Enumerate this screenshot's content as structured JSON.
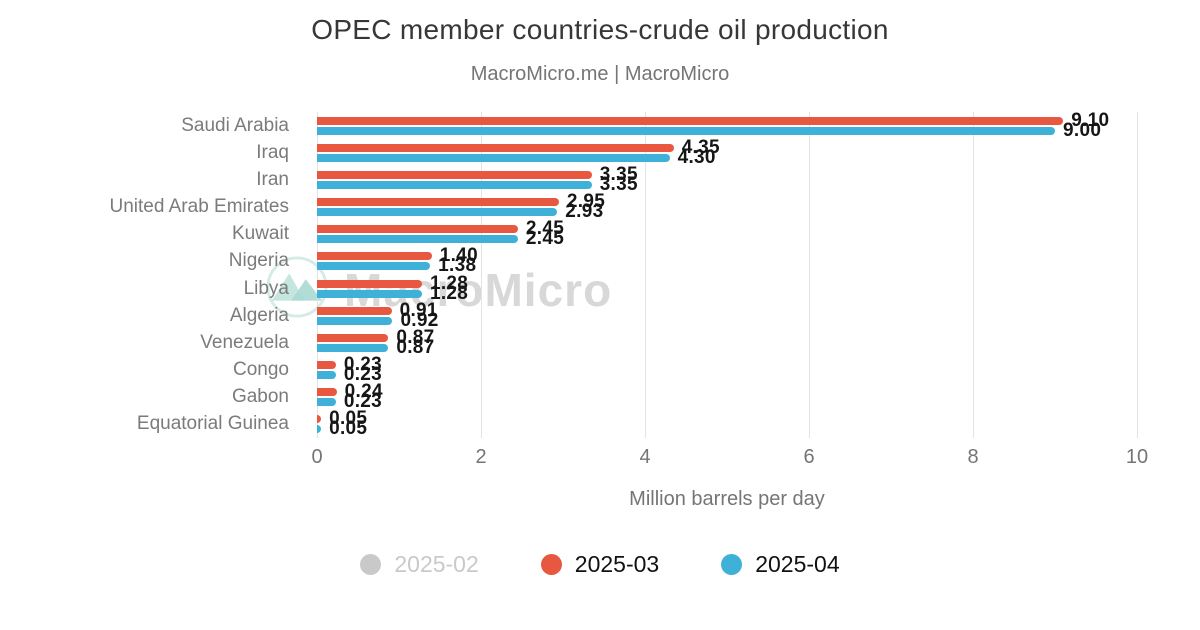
{
  "title": "OPEC member countries-crude oil production",
  "subtitle": "MacroMicro.me | MacroMicro",
  "watermark": "MacroMicro",
  "chart_data": {
    "type": "bar",
    "orientation": "horizontal",
    "title": "OPEC member countries-crude oil production",
    "subtitle": "MacroMicro.me | MacroMicro",
    "xlabel": "Million barrels per day",
    "xlim": [
      0,
      10
    ],
    "xticks": [
      0,
      2,
      4,
      6,
      8,
      10
    ],
    "grid": true,
    "legend_position": "bottom",
    "categories": [
      "Saudi Arabia",
      "Iraq",
      "Iran",
      "United Arab Emirates",
      "Kuwait",
      "Nigeria",
      "Libya",
      "Algeria",
      "Venezuela",
      "Congo",
      "Gabon",
      "Equatorial Guinea"
    ],
    "series": [
      {
        "name": "2025-02",
        "color": "#c9c9c9",
        "visible": false,
        "values": []
      },
      {
        "name": "2025-03",
        "color": "#e8573f",
        "visible": true,
        "values": [
          9.1,
          4.35,
          3.35,
          2.95,
          2.45,
          1.4,
          1.28,
          0.91,
          0.87,
          0.23,
          0.24,
          0.05
        ]
      },
      {
        "name": "2025-04",
        "color": "#3fb1d8",
        "visible": true,
        "values": [
          9.0,
          4.3,
          3.35,
          2.93,
          2.45,
          1.38,
          1.28,
          0.92,
          0.87,
          0.23,
          0.23,
          0.05
        ]
      }
    ]
  }
}
